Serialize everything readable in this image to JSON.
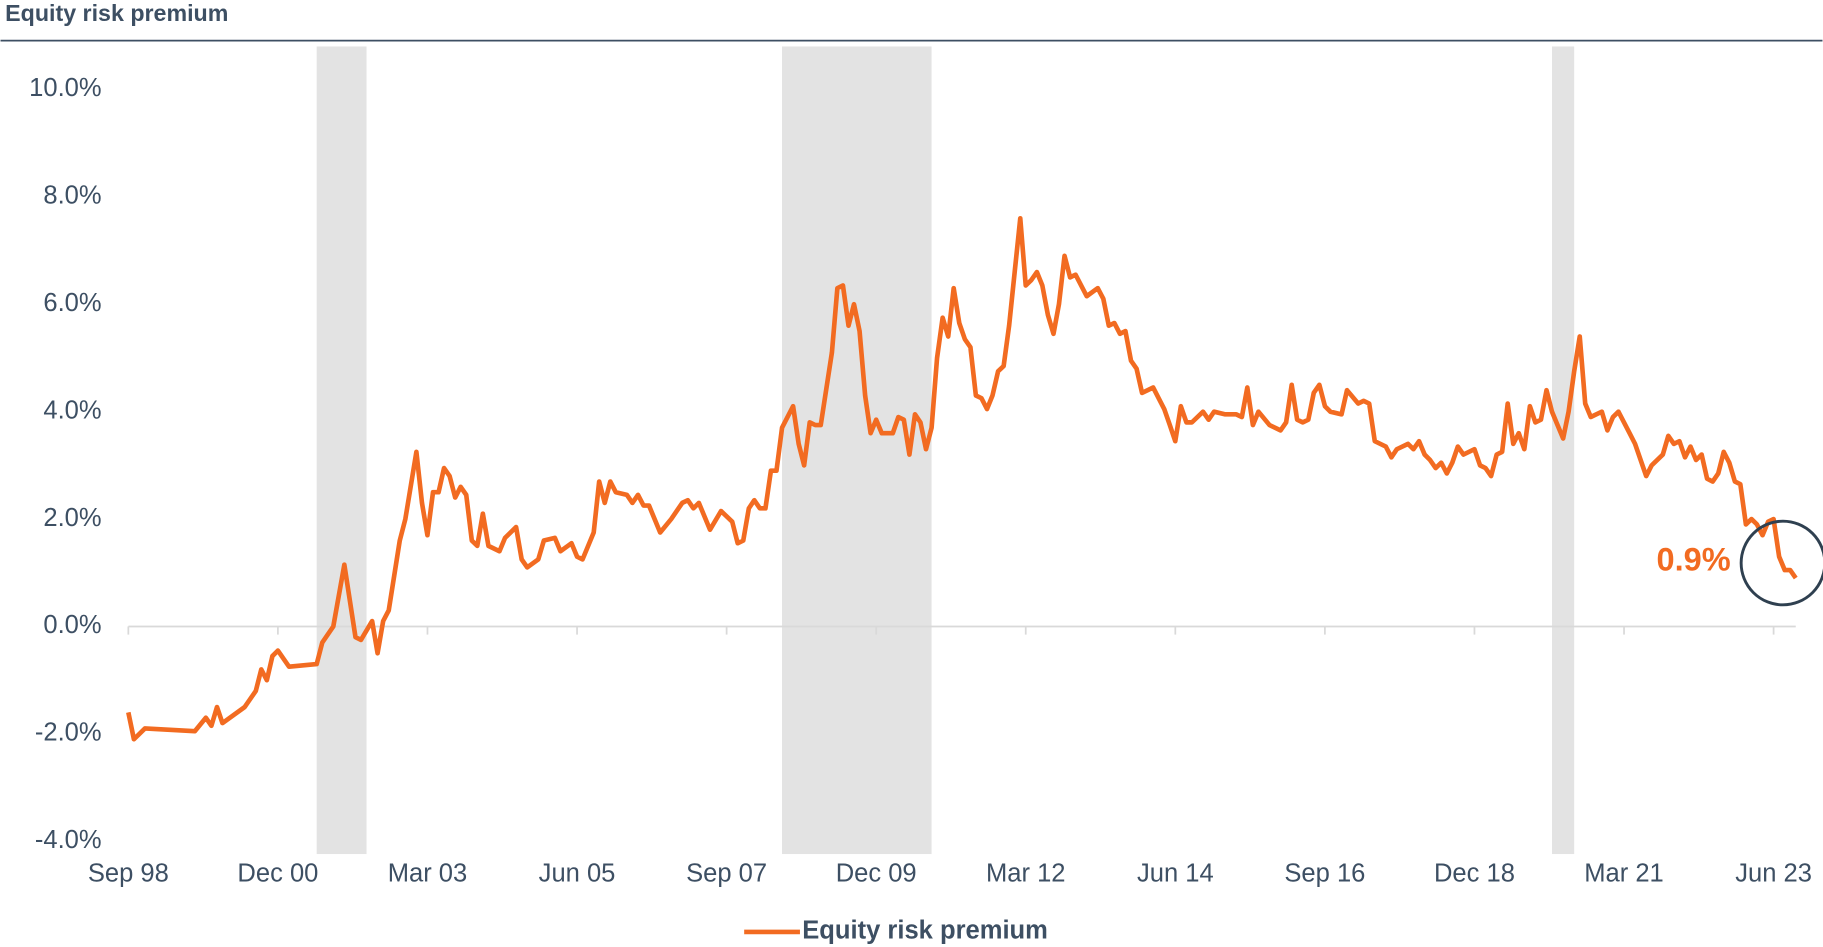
{
  "chart_data": {
    "type": "line",
    "title": "Equity risk premium",
    "x": [
      "1998-09",
      "1998-10",
      "1998-12",
      "1999-09",
      "1999-11",
      "1999-12",
      "2000-01",
      "2000-02",
      "2000-06",
      "2000-08",
      "2000-09",
      "2000-10",
      "2000-11",
      "2000-12",
      "2001-02",
      "2001-07",
      "2001-08",
      "2001-10",
      "2001-12",
      "2002-02",
      "2002-03",
      "2002-05",
      "2002-06",
      "2002-07",
      "2002-08",
      "2002-10",
      "2002-11",
      "2003-01",
      "2003-02",
      "2003-03",
      "2003-04",
      "2003-05",
      "2003-06",
      "2003-07",
      "2003-08",
      "2003-09",
      "2003-10",
      "2003-11",
      "2003-12",
      "2004-01",
      "2004-02",
      "2004-04",
      "2004-05",
      "2004-07",
      "2004-08",
      "2004-09",
      "2004-11",
      "2004-12",
      "2005-02",
      "2005-03",
      "2005-05",
      "2005-06",
      "2005-07",
      "2005-09",
      "2005-10",
      "2005-11",
      "2005-12",
      "2006-01",
      "2006-03",
      "2006-04",
      "2006-05",
      "2006-06",
      "2006-07",
      "2006-09",
      "2006-11",
      "2007-01",
      "2007-02",
      "2007-03",
      "2007-04",
      "2007-06",
      "2007-08",
      "2007-10",
      "2007-11",
      "2007-12",
      "2008-01",
      "2008-02",
      "2008-03",
      "2008-04",
      "2008-05",
      "2008-06",
      "2008-07",
      "2008-09",
      "2008-10",
      "2008-11",
      "2008-12",
      "2009-01",
      "2009-02",
      "2009-04",
      "2009-05",
      "2009-06",
      "2009-07",
      "2009-08",
      "2009-09",
      "2009-10",
      "2009-11",
      "2009-12",
      "2010-01",
      "2010-03",
      "2010-04",
      "2010-05",
      "2010-06",
      "2010-07",
      "2010-08",
      "2010-09",
      "2010-10",
      "2010-11",
      "2010-12",
      "2011-01",
      "2011-02",
      "2011-03",
      "2011-04",
      "2011-05",
      "2011-06",
      "2011-07",
      "2011-08",
      "2011-09",
      "2011-10",
      "2011-11",
      "2011-12",
      "2012-01",
      "2012-02",
      "2012-03",
      "2012-04",
      "2012-05",
      "2012-06",
      "2012-07",
      "2012-08",
      "2012-09",
      "2012-10",
      "2012-11",
      "2012-12",
      "2013-02",
      "2013-04",
      "2013-05",
      "2013-06",
      "2013-07",
      "2013-08",
      "2013-09",
      "2013-10",
      "2013-11",
      "2013-12",
      "2014-02",
      "2014-04",
      "2014-05",
      "2014-06",
      "2014-07",
      "2014-08",
      "2014-09",
      "2014-11",
      "2014-12",
      "2015-01",
      "2015-03",
      "2015-05",
      "2015-06",
      "2015-07",
      "2015-08",
      "2015-09",
      "2015-11",
      "2016-01",
      "2016-02",
      "2016-03",
      "2016-04",
      "2016-05",
      "2016-06",
      "2016-07",
      "2016-08",
      "2016-09",
      "2016-10",
      "2016-12",
      "2017-01",
      "2017-03",
      "2017-04",
      "2017-05",
      "2017-06",
      "2017-08",
      "2017-09",
      "2017-10",
      "2017-12",
      "2018-01",
      "2018-02",
      "2018-03",
      "2018-04",
      "2018-05",
      "2018-06",
      "2018-07",
      "2018-08",
      "2018-09",
      "2018-10",
      "2018-12",
      "2019-01",
      "2019-02",
      "2019-03",
      "2019-04",
      "2019-05",
      "2019-06",
      "2019-07",
      "2019-08",
      "2019-09",
      "2019-10",
      "2019-11",
      "2019-12",
      "2020-01",
      "2020-02",
      "2020-04",
      "2020-05",
      "2020-06",
      "2020-07",
      "2020-08",
      "2020-09",
      "2020-11",
      "2020-12",
      "2021-01",
      "2021-02",
      "2021-04",
      "2021-05",
      "2021-07",
      "2021-08",
      "2021-10",
      "2021-11",
      "2021-12",
      "2022-01",
      "2022-02",
      "2022-03",
      "2022-04",
      "2022-05",
      "2022-06",
      "2022-07",
      "2022-08",
      "2022-09",
      "2022-10",
      "2022-11",
      "2022-12",
      "2023-01",
      "2023-02",
      "2023-03",
      "2023-04",
      "2023-05",
      "2023-06",
      "2023-07",
      "2023-08",
      "2023-09",
      "2023-10"
    ],
    "series": [
      {
        "name": "Equity risk premium",
        "color": "#f26b21",
        "values": [
          -1.6,
          -2.1,
          -1.9,
          -1.95,
          -1.7,
          -1.85,
          -1.5,
          -1.8,
          -1.5,
          -1.2,
          -0.8,
          -1.0,
          -0.55,
          -0.45,
          -0.75,
          -0.7,
          -0.3,
          0.0,
          1.15,
          -0.2,
          -0.25,
          0.1,
          -0.5,
          0.1,
          0.3,
          1.6,
          2.0,
          3.25,
          2.3,
          1.7,
          2.5,
          2.5,
          2.95,
          2.8,
          2.4,
          2.6,
          2.45,
          1.6,
          1.5,
          2.1,
          1.5,
          1.4,
          1.65,
          1.85,
          1.25,
          1.1,
          1.25,
          1.6,
          1.65,
          1.4,
          1.55,
          1.3,
          1.25,
          1.75,
          2.7,
          2.3,
          2.7,
          2.5,
          2.45,
          2.3,
          2.45,
          2.25,
          2.25,
          1.75,
          2.0,
          2.3,
          2.35,
          2.2,
          2.3,
          1.8,
          2.15,
          1.95,
          1.55,
          1.6,
          2.2,
          2.35,
          2.2,
          2.2,
          2.9,
          2.9,
          3.7,
          4.1,
          3.4,
          3.0,
          3.8,
          3.75,
          3.75,
          5.1,
          6.3,
          6.35,
          5.6,
          6.0,
          5.5,
          4.3,
          3.6,
          3.85,
          3.6,
          3.6,
          3.9,
          3.85,
          3.2,
          3.95,
          3.8,
          3.3,
          3.7,
          5.0,
          5.75,
          5.4,
          6.3,
          5.65,
          5.35,
          5.2,
          4.3,
          4.25,
          4.05,
          4.3,
          4.75,
          4.85,
          5.6,
          6.6,
          7.6,
          6.35,
          6.45,
          6.6,
          6.35,
          5.8,
          5.45,
          6.0,
          6.9,
          6.5,
          6.55,
          6.15,
          6.3,
          6.1,
          5.6,
          5.65,
          5.45,
          5.5,
          4.95,
          4.8,
          4.35,
          4.45,
          4.05,
          3.75,
          3.45,
          4.1,
          3.8,
          3.8,
          4.0,
          3.85,
          4.0,
          3.95,
          3.95,
          3.9,
          4.45,
          3.75,
          4.0,
          3.75,
          3.65,
          3.8,
          4.5,
          3.85,
          3.8,
          3.85,
          4.35,
          4.5,
          4.1,
          4.0,
          3.95,
          4.4,
          4.15,
          4.2,
          4.15,
          3.45,
          3.35,
          3.15,
          3.3,
          3.4,
          3.3,
          3.45,
          3.2,
          3.1,
          2.95,
          3.05,
          2.85,
          3.05,
          3.35,
          3.2,
          3.3,
          3.0,
          2.95,
          2.8,
          3.2,
          3.25,
          4.15,
          3.4,
          3.6,
          3.3,
          4.1,
          3.8,
          3.85,
          4.4,
          4.0,
          3.5,
          4.0,
          4.75,
          5.4,
          4.15,
          3.9,
          4.0,
          3.65,
          3.9,
          4.0,
          3.6,
          3.4,
          2.8,
          3.0,
          3.2,
          3.55,
          3.4,
          3.45,
          3.15,
          3.35,
          3.1,
          3.2,
          2.75,
          2.7,
          2.85,
          3.25,
          3.05,
          2.7,
          2.65,
          1.9,
          2.0,
          1.9,
          1.7,
          1.95,
          2.0,
          1.3,
          1.05,
          1.05,
          0.9
        ]
      }
    ],
    "xlim": [
      "1998-09",
      "2023-10"
    ],
    "xticks": [
      {
        "value": "1998-09",
        "label": "Sep 98"
      },
      {
        "value": "2000-12",
        "label": "Dec 00"
      },
      {
        "value": "2003-03",
        "label": "Mar 03"
      },
      {
        "value": "2005-06",
        "label": "Jun 05"
      },
      {
        "value": "2007-09",
        "label": "Sep 07"
      },
      {
        "value": "2009-12",
        "label": "Dec 09"
      },
      {
        "value": "2012-03",
        "label": "Mar 12"
      },
      {
        "value": "2014-06",
        "label": "Jun 14"
      },
      {
        "value": "2016-09",
        "label": "Sep 16"
      },
      {
        "value": "2018-12",
        "label": "Dec 18"
      },
      {
        "value": "2021-03",
        "label": "Mar 21"
      },
      {
        "value": "2023-06",
        "label": "Jun 23"
      }
    ],
    "ylim": [
      -4,
      10.8
    ],
    "yticks": [
      {
        "value": -4,
        "label": "-4.0%"
      },
      {
        "value": -2,
        "label": "-2.0%"
      },
      {
        "value": 0,
        "label": "0.0%"
      },
      {
        "value": 2,
        "label": "2.0%"
      },
      {
        "value": 4,
        "label": "4.0%"
      },
      {
        "value": 6,
        "label": "6.0%"
      },
      {
        "value": 8,
        "label": "8.0%"
      },
      {
        "value": 10,
        "label": "10.0%"
      }
    ],
    "shaded": [
      {
        "start": "2001-07",
        "end": "2002-04"
      },
      {
        "start": "2008-07",
        "end": "2010-10"
      },
      {
        "start": "2020-02",
        "end": "2020-06"
      }
    ],
    "annotation": "0.9%",
    "legend": "bottom"
  }
}
